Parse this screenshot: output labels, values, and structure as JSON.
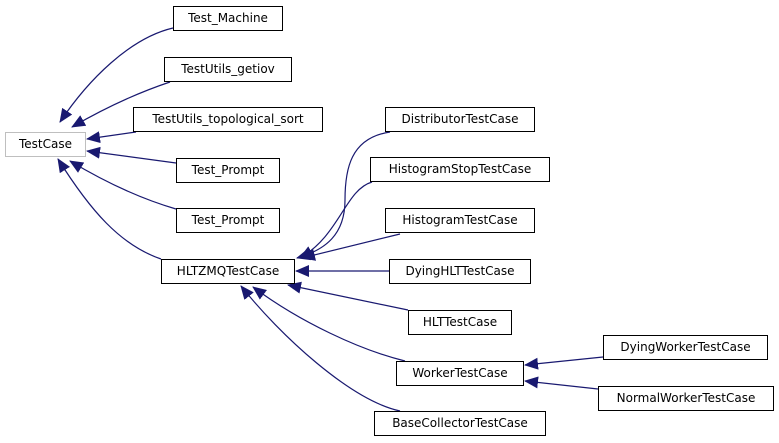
{
  "diagram": {
    "edge_color": "#191970",
    "root_border_color": "#bfbfbf",
    "nodes": {
      "test_case": "TestCase",
      "test_machine": "Test_Machine",
      "testutils_getiov": "TestUtils_getiov",
      "testutils_topological_sort": "TestUtils_topological_sort",
      "test_prompt_1": "Test_Prompt",
      "test_prompt_2": "Test_Prompt",
      "hltzmq_test_case": "HLTZMQTestCase",
      "distributor_test_case": "DistributorTestCase",
      "histogram_stop_test_case": "HistogramStopTestCase",
      "histogram_test_case": "HistogramTestCase",
      "dying_hlt_test_case": "DyingHLTTestCase",
      "hlt_test_case": "HLTTestCase",
      "worker_test_case": "WorkerTestCase",
      "base_collector_test_case": "BaseCollectorTestCase",
      "dying_worker_test_case": "DyingWorkerTestCase",
      "normal_worker_test_case": "NormalWorkerTestCase"
    },
    "edges": [
      {
        "child": "Test_Machine",
        "parent": "TestCase"
      },
      {
        "child": "TestUtils_getiov",
        "parent": "TestCase"
      },
      {
        "child": "TestUtils_topological_sort",
        "parent": "TestCase"
      },
      {
        "child": "Test_Prompt",
        "parent": "TestCase"
      },
      {
        "child": "Test_Prompt",
        "parent": "TestCase"
      },
      {
        "child": "HLTZMQTestCase",
        "parent": "TestCase"
      },
      {
        "child": "DistributorTestCase",
        "parent": "HLTZMQTestCase"
      },
      {
        "child": "HistogramStopTestCase",
        "parent": "HLTZMQTestCase"
      },
      {
        "child": "HistogramTestCase",
        "parent": "HLTZMQTestCase"
      },
      {
        "child": "DyingHLTTestCase",
        "parent": "HLTZMQTestCase"
      },
      {
        "child": "HLTTestCase",
        "parent": "HLTZMQTestCase"
      },
      {
        "child": "WorkerTestCase",
        "parent": "HLTZMQTestCase"
      },
      {
        "child": "BaseCollectorTestCase",
        "parent": "HLTZMQTestCase"
      },
      {
        "child": "DyingWorkerTestCase",
        "parent": "WorkerTestCase"
      },
      {
        "child": "NormalWorkerTestCase",
        "parent": "WorkerTestCase"
      }
    ]
  }
}
